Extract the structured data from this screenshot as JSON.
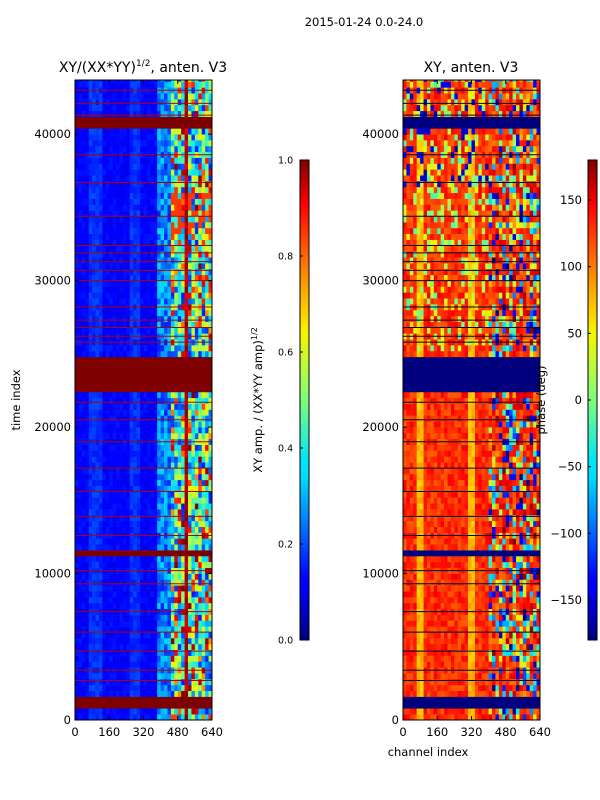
{
  "figure": {
    "suptitle": "2015-01-24 0.0-24.0"
  },
  "chart_data": [
    {
      "type": "heatmap",
      "title_main": "XY/(XX*YY)",
      "title_exponent": "1/2",
      "title_rest": ", anten. V3",
      "xlabel": "",
      "ylabel": "time index",
      "xlim": [
        0,
        640
      ],
      "ylim": [
        0,
        43700
      ],
      "xticks": [
        0,
        160,
        320,
        480,
        640
      ],
      "yticks": [
        0,
        10000,
        20000,
        30000,
        40000
      ],
      "colorbar": {
        "label_main": "XY amp. / (XX*YY amp)",
        "label_exponent": "1/2",
        "range": [
          0.0,
          1.0
        ],
        "ticks": [
          "0.0",
          "0.2",
          "0.4",
          "0.6",
          "0.8",
          "1.0"
        ],
        "colormap": "jet"
      }
    },
    {
      "type": "heatmap",
      "title_main": "XY, anten. V3",
      "xlabel": "channel index",
      "ylabel": "",
      "xlim": [
        0,
        640
      ],
      "ylim": [
        0,
        43700
      ],
      "xticks": [
        0,
        160,
        320,
        480,
        640
      ],
      "yticks": [
        0,
        10000,
        20000,
        30000,
        40000
      ],
      "colorbar": {
        "label_main": "phase (deg)",
        "range": [
          -180,
          180
        ],
        "ticks": [
          "−150",
          "−100",
          "−50",
          "0",
          "50",
          "100",
          "150"
        ],
        "tick_values": [
          -150,
          -100,
          -50,
          0,
          50,
          100,
          150
        ],
        "colormap": "jet"
      }
    }
  ]
}
